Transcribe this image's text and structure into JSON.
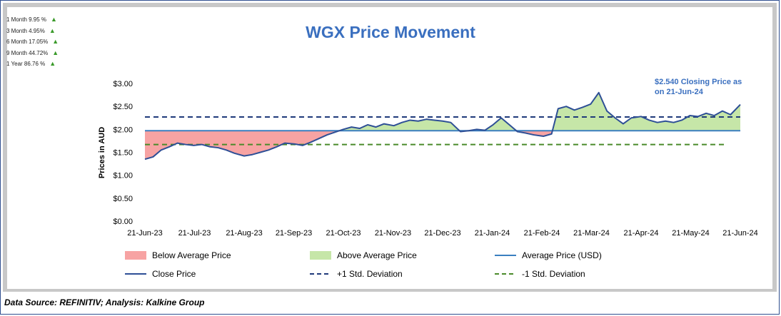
{
  "performance": [
    {
      "label": "1 Month 9.95 %"
    },
    {
      "label": "3 Month 4.95%"
    },
    {
      "label": "6 Month 17.05%"
    },
    {
      "label": "9 Month 44.72%"
    },
    {
      "label": "1 Year 86.76 %"
    }
  ],
  "footer": "Data Source: REFINITIV; Analysis: Kalkine Group",
  "colors": {
    "close": "#2e4f96",
    "average": "#3a7fc0",
    "above_fill": "#c6e6a8",
    "below_fill": "#f7a3a3",
    "plus_sd": "#1f3a7a",
    "minus_sd": "#4a8a2a",
    "title": "#3a6fbf"
  },
  "chart_data": {
    "type": "line",
    "title": "WGX Price Movement",
    "ylabel": "Prices in AUD",
    "xlabel": "",
    "ylim": [
      0,
      3
    ],
    "y_ticks": [
      "$0.00",
      "$0.50",
      "$1.00",
      "$1.50",
      "$2.00",
      "$2.50",
      "$3.00"
    ],
    "x_ticks": [
      "21-Jun-23",
      "21-Jul-23",
      "21-Aug-23",
      "21-Sep-23",
      "21-Oct-23",
      "21-Nov-23",
      "21-Dec-23",
      "21-Jan-24",
      "21-Feb-24",
      "21-Mar-24",
      "21-Apr-24",
      "21-May-24",
      "21-Jun-24"
    ],
    "average": 1.97,
    "plus_sd": 2.27,
    "minus_sd": 1.67,
    "annotation": "$2.540 Closing Price as on 21-Jun-24",
    "close_series": [
      [
        "2023-06-21",
        1.35
      ],
      [
        "2023-06-26",
        1.4
      ],
      [
        "2023-07-01",
        1.55
      ],
      [
        "2023-07-06",
        1.62
      ],
      [
        "2023-07-11",
        1.7
      ],
      [
        "2023-07-16",
        1.67
      ],
      [
        "2023-07-21",
        1.65
      ],
      [
        "2023-07-26",
        1.67
      ],
      [
        "2023-07-31",
        1.62
      ],
      [
        "2023-08-05",
        1.6
      ],
      [
        "2023-08-10",
        1.55
      ],
      [
        "2023-08-15",
        1.48
      ],
      [
        "2023-08-21",
        1.42
      ],
      [
        "2023-08-26",
        1.45
      ],
      [
        "2023-08-31",
        1.5
      ],
      [
        "2023-09-05",
        1.55
      ],
      [
        "2023-09-10",
        1.62
      ],
      [
        "2023-09-15",
        1.7
      ],
      [
        "2023-09-21",
        1.68
      ],
      [
        "2023-09-26",
        1.65
      ],
      [
        "2023-10-01",
        1.72
      ],
      [
        "2023-10-06",
        1.8
      ],
      [
        "2023-10-11",
        1.88
      ],
      [
        "2023-10-16",
        1.94
      ],
      [
        "2023-10-21",
        2.0
      ],
      [
        "2023-10-26",
        2.05
      ],
      [
        "2023-10-31",
        2.02
      ],
      [
        "2023-11-05",
        2.1
      ],
      [
        "2023-11-10",
        2.05
      ],
      [
        "2023-11-15",
        2.12
      ],
      [
        "2023-11-21",
        2.08
      ],
      [
        "2023-11-26",
        2.15
      ],
      [
        "2023-12-01",
        2.2
      ],
      [
        "2023-12-06",
        2.18
      ],
      [
        "2023-12-11",
        2.22
      ],
      [
        "2023-12-16",
        2.2
      ],
      [
        "2023-12-21",
        2.18
      ],
      [
        "2023-12-26",
        2.15
      ],
      [
        "2024-01-01",
        1.95
      ],
      [
        "2024-01-06",
        1.97
      ],
      [
        "2024-01-11",
        2.0
      ],
      [
        "2024-01-16",
        1.98
      ],
      [
        "2024-01-21",
        2.1
      ],
      [
        "2024-01-26",
        2.25
      ],
      [
        "2024-01-31",
        2.1
      ],
      [
        "2024-02-05",
        1.95
      ],
      [
        "2024-02-10",
        1.92
      ],
      [
        "2024-02-15",
        1.88
      ],
      [
        "2024-02-21",
        1.85
      ],
      [
        "2024-02-26",
        1.9
      ],
      [
        "2024-03-01",
        2.45
      ],
      [
        "2024-03-06",
        2.5
      ],
      [
        "2024-03-11",
        2.42
      ],
      [
        "2024-03-16",
        2.48
      ],
      [
        "2024-03-21",
        2.55
      ],
      [
        "2024-03-26",
        2.8
      ],
      [
        "2024-03-31",
        2.4
      ],
      [
        "2024-04-05",
        2.25
      ],
      [
        "2024-04-10",
        2.12
      ],
      [
        "2024-04-15",
        2.25
      ],
      [
        "2024-04-21",
        2.28
      ],
      [
        "2024-04-26",
        2.2
      ],
      [
        "2024-05-01",
        2.15
      ],
      [
        "2024-05-06",
        2.18
      ],
      [
        "2024-05-11",
        2.15
      ],
      [
        "2024-05-16",
        2.2
      ],
      [
        "2024-05-21",
        2.3
      ],
      [
        "2024-05-26",
        2.28
      ],
      [
        "2024-05-31",
        2.35
      ],
      [
        "2024-06-05",
        2.3
      ],
      [
        "2024-06-10",
        2.4
      ],
      [
        "2024-06-15",
        2.32
      ],
      [
        "2024-06-21",
        2.54
      ]
    ],
    "legend": [
      {
        "label": "Below Average Price",
        "kind": "fill-below"
      },
      {
        "label": "Above Average Price",
        "kind": "fill-above"
      },
      {
        "label": "Average Price (USD)",
        "kind": "line-average"
      },
      {
        "label": "Close Price",
        "kind": "line-close"
      },
      {
        "label": "+1 Std. Deviation",
        "kind": "dash-plus"
      },
      {
        "label": "-1 Std. Deviation",
        "kind": "dash-minus"
      }
    ]
  }
}
